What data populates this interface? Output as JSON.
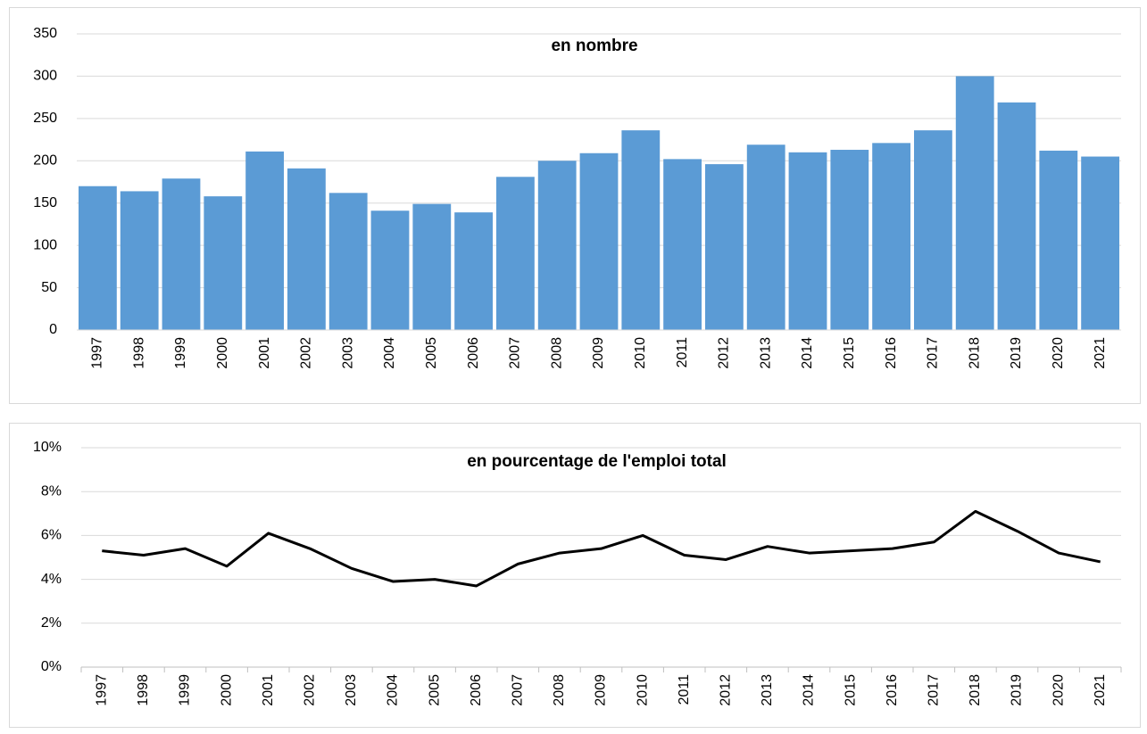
{
  "chart_data": [
    {
      "type": "bar",
      "title": "en nombre",
      "categories": [
        "1997",
        "1998",
        "1999",
        "2000",
        "2001",
        "2002",
        "2003",
        "2004",
        "2005",
        "2006",
        "2007",
        "2008",
        "2009",
        "2010",
        "2011",
        "2012",
        "2013",
        "2014",
        "2015",
        "2016",
        "2017",
        "2018",
        "2019",
        "2020",
        "2021"
      ],
      "values": [
        170,
        164,
        179,
        158,
        211,
        191,
        162,
        141,
        149,
        139,
        181,
        200,
        209,
        236,
        202,
        196,
        219,
        210,
        213,
        221,
        236,
        300,
        269,
        212,
        205
      ],
      "color": "#5b9bd5",
      "ylim": [
        0,
        350
      ],
      "yticks": [
        0,
        50,
        100,
        150,
        200,
        250,
        300,
        350
      ],
      "grid": true
    },
    {
      "type": "line",
      "title": "en pourcentage de l'emploi total",
      "categories": [
        "1997",
        "1998",
        "1999",
        "2000",
        "2001",
        "2002",
        "2003",
        "2004",
        "2005",
        "2006",
        "2007",
        "2008",
        "2009",
        "2010",
        "2011",
        "2012",
        "2013",
        "2014",
        "2015",
        "2016",
        "2017",
        "2018",
        "2019",
        "2020",
        "2021"
      ],
      "values": [
        5.3,
        5.1,
        5.4,
        4.6,
        6.1,
        5.4,
        4.5,
        3.9,
        4.0,
        3.7,
        4.7,
        5.2,
        5.4,
        6.0,
        5.1,
        4.9,
        5.5,
        5.2,
        5.3,
        5.4,
        5.7,
        7.1,
        6.2,
        5.2,
        4.8
      ],
      "color": "#000000",
      "ylim": [
        0,
        10
      ],
      "yticks": [
        {
          "value": 0,
          "label": "0%"
        },
        {
          "value": 2,
          "label": "2%"
        },
        {
          "value": 4,
          "label": "4%"
        },
        {
          "value": 6,
          "label": "6%"
        },
        {
          "value": 8,
          "label": "8%"
        },
        {
          "value": 10,
          "label": "10%"
        }
      ],
      "grid": true
    }
  ]
}
